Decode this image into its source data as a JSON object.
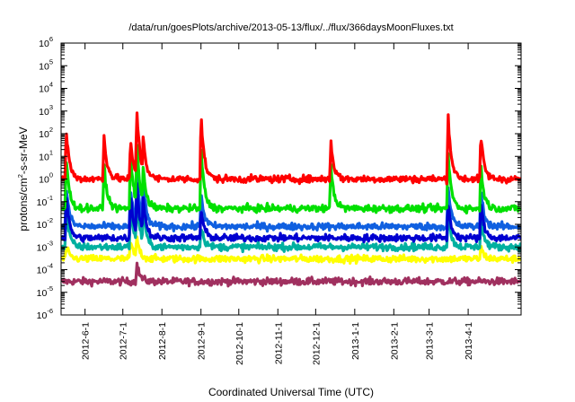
{
  "chart_data": {
    "type": "line",
    "title": "/data/run/goesPlots/archive/2013-05-13/flux/../flux/366daysMoonFluxes.txt",
    "xlabel": "Coordinated Universal Time (UTC)",
    "ylabel": "protons/cm2-s-sr-MeV",
    "ylabel_parts": {
      "main": "protons/cm",
      "sup": "2",
      "rest": "-s-sr-MeV"
    },
    "y_scale": "log",
    "ylim": [
      1e-06,
      1000000.0
    ],
    "y_ticks": [
      {
        "base": "10",
        "exp": "-6"
      },
      {
        "base": "10",
        "exp": "-5"
      },
      {
        "base": "10",
        "exp": "-4"
      },
      {
        "base": "10",
        "exp": "-3"
      },
      {
        "base": "10",
        "exp": "-2"
      },
      {
        "base": "10",
        "exp": "-1"
      },
      {
        "base": "10",
        "exp": "0"
      },
      {
        "base": "10",
        "exp": "1"
      },
      {
        "base": "10",
        "exp": "2"
      },
      {
        "base": "10",
        "exp": "3"
      },
      {
        "base": "10",
        "exp": "4"
      },
      {
        "base": "10",
        "exp": "5"
      },
      {
        "base": "10",
        "exp": "6"
      }
    ],
    "xlim": [
      "2012-05-13",
      "2013-05-13"
    ],
    "x_ticks": [
      "2012-6-1",
      "2012-7-1",
      "2012-8-1",
      "2012-9-1",
      "2012-10-1",
      "2012-11-1",
      "2012-12-1",
      "2013-1-1",
      "2013-2-1",
      "2013-3-1",
      "2013-4-1"
    ],
    "x_tick_dates": [
      "2012-06-01",
      "2012-07-01",
      "2012-08-01",
      "2012-09-01",
      "2012-10-01",
      "2012-11-01",
      "2012-12-01",
      "2013-01-01",
      "2013-02-01",
      "2013-03-01",
      "2013-04-01"
    ],
    "grid": false,
    "legend": "none",
    "series": [
      {
        "color": "#a0305f",
        "baseline": 3e-05,
        "events": [
          [
            "2012-07-12",
            0.0002
          ]
        ]
      },
      {
        "color": "#ffff00",
        "baseline": 0.0003,
        "events": [
          [
            "2012-05-17",
            0.001
          ],
          [
            "2012-07-07",
            0.002
          ],
          [
            "2012-07-12",
            0.003
          ],
          [
            "2013-04-11",
            0.001
          ]
        ]
      },
      {
        "color": "#00b0a0",
        "baseline": 0.001,
        "events": [
          [
            "2012-05-17",
            0.05
          ],
          [
            "2012-07-07",
            0.1
          ],
          [
            "2012-07-12",
            0.2
          ],
          [
            "2012-07-17",
            0.05
          ],
          [
            "2012-09-01",
            0.01
          ],
          [
            "2013-03-16",
            0.03
          ],
          [
            "2013-04-11",
            0.02
          ]
        ]
      },
      {
        "color": "#1060e0",
        "baseline": 0.008,
        "events": [
          [
            "2012-05-17",
            0.5
          ],
          [
            "2012-07-07",
            0.4
          ],
          [
            "2012-07-12",
            3
          ],
          [
            "2012-07-17",
            1
          ],
          [
            "2012-09-01",
            0.3
          ],
          [
            "2013-03-16",
            0.5
          ],
          [
            "2013-04-11",
            0.4
          ]
        ]
      },
      {
        "color": "#0000d0",
        "baseline": 0.0025,
        "events": [
          [
            "2012-05-17",
            0.2
          ],
          [
            "2012-07-07",
            0.3
          ],
          [
            "2012-07-12",
            0.8
          ],
          [
            "2012-07-17",
            0.2
          ],
          [
            "2012-09-01",
            0.05
          ],
          [
            "2013-03-16",
            0.1
          ],
          [
            "2013-04-11",
            0.1
          ]
        ]
      },
      {
        "color": "#00e000",
        "baseline": 0.05,
        "events": [
          [
            "2012-05-17",
            10
          ],
          [
            "2012-06-16",
            5
          ],
          [
            "2012-07-07",
            20
          ],
          [
            "2012-07-12",
            50
          ],
          [
            "2012-07-17",
            5
          ],
          [
            "2012-09-01",
            30
          ],
          [
            "2012-12-13",
            5
          ],
          [
            "2013-03-16",
            20
          ],
          [
            "2013-04-11",
            5
          ]
        ]
      },
      {
        "color": "#ff0000",
        "baseline": 1,
        "events": [
          [
            "2012-05-17",
            200
          ],
          [
            "2012-06-16",
            100
          ],
          [
            "2012-07-07",
            50
          ],
          [
            "2012-07-12",
            2000
          ],
          [
            "2012-07-17",
            100
          ],
          [
            "2012-09-01",
            800
          ],
          [
            "2012-12-13",
            50
          ],
          [
            "2013-03-16",
            1000
          ],
          [
            "2013-04-11",
            100
          ]
        ]
      }
    ]
  }
}
